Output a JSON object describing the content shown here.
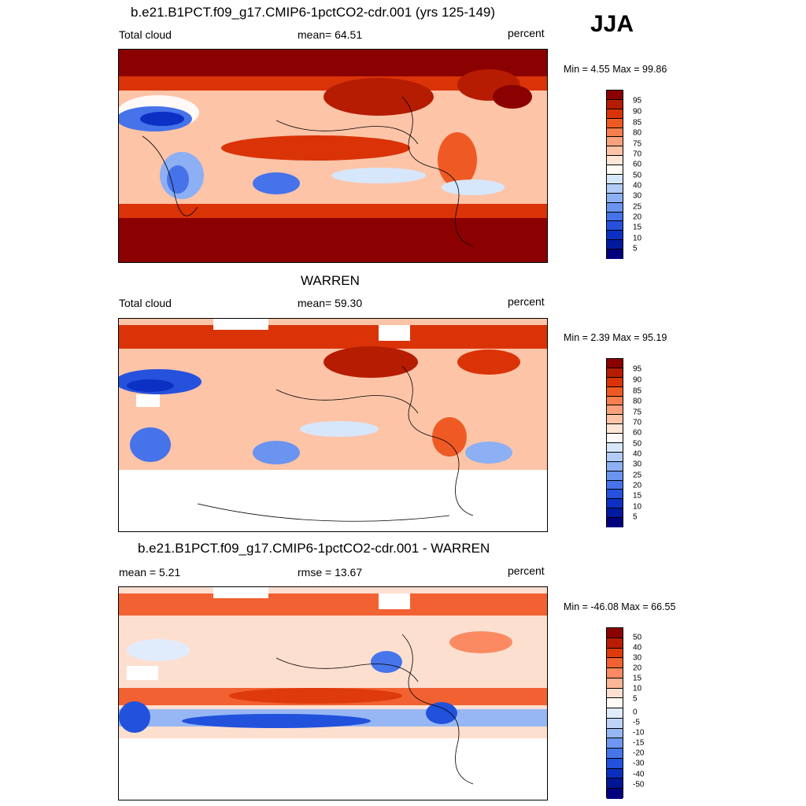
{
  "season": "JJA",
  "colors": {
    "abs_scale": [
      "#8b0000",
      "#b51c02",
      "#da3308",
      "#ef5a24",
      "#f77e4e",
      "#fba17c",
      "#fdc4a8",
      "#ffe6d6",
      "#fffaf5",
      "#d7e7fb",
      "#b2ccf7",
      "#8cb0f3",
      "#6b93f0",
      "#4773ea",
      "#2551dd",
      "#0c30c4",
      "#001a9f",
      "#00007f"
    ],
    "diff_scale": [
      "#8b0000",
      "#b81d02",
      "#de3a0b",
      "#f26132",
      "#fb8a62",
      "#fcb596",
      "#fddfd0",
      "#fffaf6",
      "#e0ecfc",
      "#bdd3f8",
      "#96b7f4",
      "#6f97f1",
      "#4775ea",
      "#2252dc",
      "#0a2fbf",
      "#001696",
      "#00007f"
    ]
  },
  "panels": [
    {
      "title": "b.e21.B1PCT.f09_g17.CMIP6-1pctCO2-cdr.001 (yrs 125-149)",
      "left_label": "Total cloud",
      "center_label": "mean=  64.51",
      "units": "percent",
      "range": "Min =   4.55 Max =  99.86",
      "colorbar_labels": [
        "95",
        "90",
        "85",
        "80",
        "75",
        "70",
        "60",
        "50",
        "40",
        "30",
        "25",
        "20",
        "15",
        "10",
        "5"
      ]
    },
    {
      "title": "WARREN",
      "left_label": "Total cloud",
      "center_label": "mean=  59.30",
      "units": "percent",
      "range": "Min =   2.39 Max =  95.19",
      "colorbar_labels": [
        "95",
        "90",
        "85",
        "80",
        "75",
        "70",
        "60",
        "50",
        "40",
        "30",
        "25",
        "20",
        "15",
        "10",
        "5"
      ]
    },
    {
      "title": "b.e21.B1PCT.f09_g17.CMIP6-1pctCO2-cdr.001 - WARREN",
      "left_label": "mean =   5.21",
      "center_label": "rmse =  13.67",
      "units": "percent",
      "range": "Min = -46.08 Max =  66.55",
      "colorbar_labels": [
        "50",
        "40",
        "30",
        "20",
        "15",
        "10",
        "5",
        "0",
        "-5",
        "-10",
        "-15",
        "-20",
        "-30",
        "-40",
        "-50"
      ]
    }
  ]
}
